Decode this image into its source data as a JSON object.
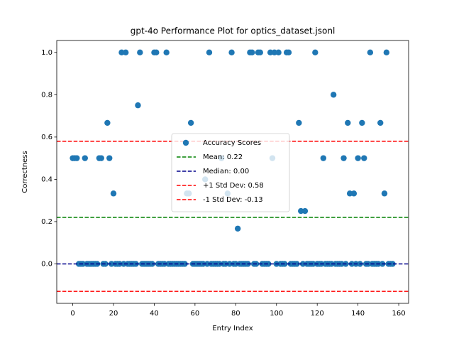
{
  "chart_data": {
    "type": "scatter",
    "title": "gpt-4o Performance Plot for optics_dataset.jsonl",
    "x_label": "Entry Index",
    "y_label": "Correctness",
    "x": [
      0,
      1,
      2,
      3,
      4,
      5,
      6,
      7,
      8,
      9,
      10,
      11,
      12,
      13,
      14,
      15,
      16,
      17,
      18,
      19,
      20,
      21,
      22,
      23,
      24,
      25,
      26,
      27,
      28,
      29,
      30,
      31,
      32,
      33,
      34,
      35,
      36,
      37,
      38,
      39,
      40,
      41,
      42,
      43,
      44,
      45,
      46,
      47,
      48,
      49,
      50,
      51,
      52,
      53,
      54,
      55,
      56,
      57,
      58,
      59,
      60,
      61,
      62,
      63,
      64,
      65,
      66,
      67,
      68,
      69,
      70,
      71,
      72,
      73,
      74,
      75,
      76,
      77,
      78,
      79,
      80,
      81,
      82,
      83,
      84,
      85,
      86,
      87,
      88,
      89,
      90,
      91,
      92,
      93,
      94,
      95,
      96,
      97,
      98,
      99,
      100,
      101,
      102,
      103,
      104,
      105,
      106,
      107,
      108,
      109,
      110,
      111,
      112,
      113,
      114,
      115,
      116,
      117,
      118,
      119,
      120,
      121,
      122,
      123,
      124,
      125,
      126,
      127,
      128,
      129,
      130,
      131,
      132,
      133,
      134,
      135,
      136,
      137,
      138,
      139,
      140,
      141,
      142,
      143,
      144,
      145,
      146,
      147,
      148,
      149,
      150,
      151,
      152,
      153,
      154,
      155,
      156,
      157
    ],
    "series": [
      {
        "name": "Accuracy Scores",
        "color": "#1f77b4",
        "values": [
          0.5,
          0.5,
          0.5,
          0,
          0,
          0,
          0.5,
          0,
          0,
          0,
          0,
          0,
          0,
          0.5,
          0.5,
          0,
          0,
          0.667,
          0.5,
          0,
          0.333,
          0,
          0,
          0,
          1,
          0,
          1,
          0,
          0,
          0,
          0,
          0,
          0.75,
          1,
          0,
          0,
          0,
          0,
          0,
          0,
          1,
          1,
          0,
          0,
          0,
          0,
          1,
          0,
          0,
          0,
          0,
          0,
          0,
          0,
          0,
          0,
          0.333,
          0.333,
          0.667,
          0,
          0,
          0,
          0,
          0,
          0,
          0.4,
          0,
          1,
          0,
          0,
          0,
          0,
          0,
          0.5,
          0,
          0,
          0.333,
          0,
          1,
          0,
          0,
          0.167,
          0,
          0,
          0,
          0,
          0,
          1,
          1,
          0,
          0,
          1,
          1,
          0,
          0,
          0,
          0,
          1,
          0.5,
          1,
          0,
          1,
          0,
          0,
          0,
          1,
          1,
          0,
          0,
          0,
          0,
          0.667,
          0.25,
          0,
          0.25,
          0,
          0,
          0,
          0,
          1,
          0,
          0,
          0,
          0.5,
          0,
          0,
          0,
          0,
          0.8,
          0,
          0,
          0,
          0,
          0.5,
          0,
          0.667,
          0.333,
          0,
          0.333,
          0,
          0.5,
          0,
          0.667,
          0.5,
          0,
          0,
          1,
          0,
          0,
          0,
          0,
          0.667,
          0,
          0.333,
          1,
          0,
          0,
          0
        ]
      }
    ],
    "reference_lines": [
      {
        "name": "Mean: 0.22",
        "color": "#008000",
        "value": 0.22
      },
      {
        "name": "Median: 0.00",
        "color": "#00008b",
        "value": 0
      },
      {
        "name": "+1 Std Dev: 0.58",
        "color": "#ff0000",
        "value": 0.58
      },
      {
        "name": "-1 Std Dev: -0.13",
        "color": "#ff0000",
        "value": -0.13
      }
    ],
    "xlim": [
      -7.85,
      164.85
    ],
    "xticks": [
      0,
      20,
      40,
      60,
      80,
      100,
      120,
      140,
      160
    ],
    "ylim": [
      -0.1865,
      1.0565
    ],
    "yticks": [
      {
        "value": 0,
        "label": "0.0"
      },
      0.2,
      0.4,
      0.6,
      0.8,
      {
        "value": 1,
        "label": "1.0"
      }
    ],
    "legend": "center"
  }
}
